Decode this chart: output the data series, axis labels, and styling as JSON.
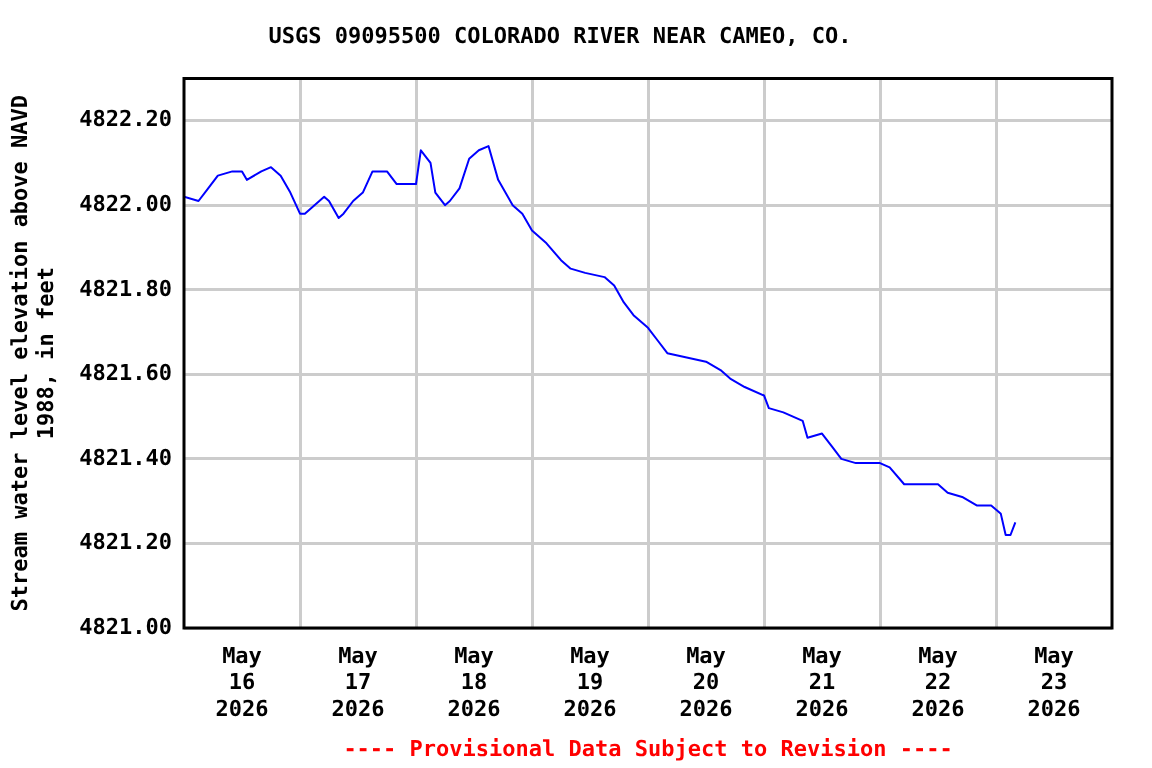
{
  "chart_data": {
    "type": "line",
    "title": "USGS 09095500 COLORADO RIVER NEAR CAMEO, CO.",
    "ylabel": "Stream water level elevation above NAVD 1988, in feet",
    "annotations": [
      "---- Provisional Data Subject to Revision ----"
    ],
    "x": [
      "2026-05-16T00:00",
      "2026-05-16T03:00",
      "2026-05-16T05:00",
      "2026-05-16T07:00",
      "2026-05-16T10:00",
      "2026-05-16T12:00",
      "2026-05-16T13:00",
      "2026-05-16T16:00",
      "2026-05-16T18:00",
      "2026-05-16T20:00",
      "2026-05-16T22:00",
      "2026-05-17T00:00",
      "2026-05-17T01:00",
      "2026-05-17T03:00",
      "2026-05-17T05:00",
      "2026-05-17T06:00",
      "2026-05-17T08:00",
      "2026-05-17T09:00",
      "2026-05-17T11:00",
      "2026-05-17T13:00",
      "2026-05-17T15:00",
      "2026-05-17T18:00",
      "2026-05-17T20:00",
      "2026-05-17T22:00",
      "2026-05-18T00:00",
      "2026-05-18T01:00",
      "2026-05-18T03:00",
      "2026-05-18T04:00",
      "2026-05-18T06:00",
      "2026-05-18T07:00",
      "2026-05-18T09:00",
      "2026-05-18T11:00",
      "2026-05-18T13:00",
      "2026-05-18T15:00",
      "2026-05-18T17:00",
      "2026-05-18T20:00",
      "2026-05-18T22:00",
      "2026-05-19T00:00",
      "2026-05-19T03:00",
      "2026-05-19T06:00",
      "2026-05-19T08:00",
      "2026-05-19T11:00",
      "2026-05-19T15:00",
      "2026-05-19T17:00",
      "2026-05-19T19:00",
      "2026-05-19T21:00",
      "2026-05-20T00:00",
      "2026-05-20T02:00",
      "2026-05-20T04:00",
      "2026-05-20T08:00",
      "2026-05-20T12:00",
      "2026-05-20T15:00",
      "2026-05-20T17:00",
      "2026-05-20T20:00",
      "2026-05-21T00:00",
      "2026-05-21T01:00",
      "2026-05-21T04:00",
      "2026-05-21T06:00",
      "2026-05-21T08:00",
      "2026-05-21T09:00",
      "2026-05-21T12:00",
      "2026-05-21T14:00",
      "2026-05-21T16:00",
      "2026-05-21T19:00",
      "2026-05-21T22:00",
      "2026-05-22T00:00",
      "2026-05-22T02:00",
      "2026-05-22T05:00",
      "2026-05-22T09:00",
      "2026-05-22T12:00",
      "2026-05-22T14:00",
      "2026-05-22T17:00",
      "2026-05-22T20:00",
      "2026-05-22T23:00",
      "2026-05-23T01:00",
      "2026-05-23T02:00",
      "2026-05-23T03:00",
      "2026-05-23T04:00"
    ],
    "series": [
      {
        "color": "#0000ff",
        "values": [
          4822.02,
          4822.01,
          4822.04,
          4822.07,
          4822.08,
          4822.08,
          4822.06,
          4822.08,
          4822.09,
          4822.07,
          4822.03,
          4821.98,
          4821.98,
          4822.0,
          4822.02,
          4822.01,
          4821.97,
          4821.98,
          4822.01,
          4822.03,
          4822.08,
          4822.08,
          4822.05,
          4822.05,
          4822.05,
          4822.13,
          4822.1,
          4822.03,
          4822.0,
          4822.01,
          4822.04,
          4822.11,
          4822.13,
          4822.14,
          4822.06,
          4822.0,
          4821.98,
          4821.94,
          4821.91,
          4821.87,
          4821.85,
          4821.84,
          4821.83,
          4821.81,
          4821.77,
          4821.74,
          4821.71,
          4821.68,
          4821.65,
          4821.64,
          4821.63,
          4821.61,
          4821.59,
          4821.57,
          4821.55,
          4821.52,
          4821.51,
          4821.5,
          4821.49,
          4821.45,
          4821.46,
          4821.43,
          4821.4,
          4821.39,
          4821.39,
          4821.39,
          4821.38,
          4821.34,
          4821.34,
          4821.34,
          4821.32,
          4821.31,
          4821.29,
          4821.29,
          4821.27,
          4821.22,
          4821.22,
          4821.25
        ]
      }
    ],
    "xlim": [
      "2026-05-16T00:00",
      "2026-05-24T00:00"
    ],
    "xticks": [
      {
        "value": "2026-05-16T12:00",
        "label": "May\n16\n2026"
      },
      {
        "value": "2026-05-17T00:00",
        "label": null
      },
      {
        "value": "2026-05-17T12:00",
        "label": "May\n17\n2026"
      },
      {
        "value": "2026-05-18T00:00",
        "label": null
      },
      {
        "value": "2026-05-18T12:00",
        "label": "May\n18\n2026"
      },
      {
        "value": "2026-05-19T00:00",
        "label": null
      },
      {
        "value": "2026-05-19T12:00",
        "label": "May\n19\n2026"
      },
      {
        "value": "2026-05-20T00:00",
        "label": null
      },
      {
        "value": "2026-05-20T12:00",
        "label": "May\n20\n2026"
      },
      {
        "value": "2026-05-21T00:00",
        "label": null
      },
      {
        "value": "2026-05-21T12:00",
        "label": "May\n21\n2026"
      },
      {
        "value": "2026-05-22T00:00",
        "label": null
      },
      {
        "value": "2026-05-22T12:00",
        "label": "May\n22\n2026"
      },
      {
        "value": "2026-05-23T00:00",
        "label": null
      },
      {
        "value": "2026-05-23T12:00",
        "label": "May\n23\n2026"
      }
    ],
    "ylim": [
      4821.0,
      4822.3
    ],
    "yticks": [
      {
        "value": 4821.0,
        "label": "4821.00"
      },
      {
        "value": 4821.2,
        "label": "4821.20"
      },
      {
        "value": 4821.4,
        "label": "4821.40"
      },
      {
        "value": 4821.6,
        "label": "4821.60"
      },
      {
        "value": 4821.8,
        "label": "4821.80"
      },
      {
        "value": 4822.0,
        "label": "4822.00"
      },
      {
        "value": 4822.2,
        "label": "4822.20"
      }
    ],
    "grid": true,
    "legend": false,
    "marker": "none",
    "line_style": "solid"
  }
}
